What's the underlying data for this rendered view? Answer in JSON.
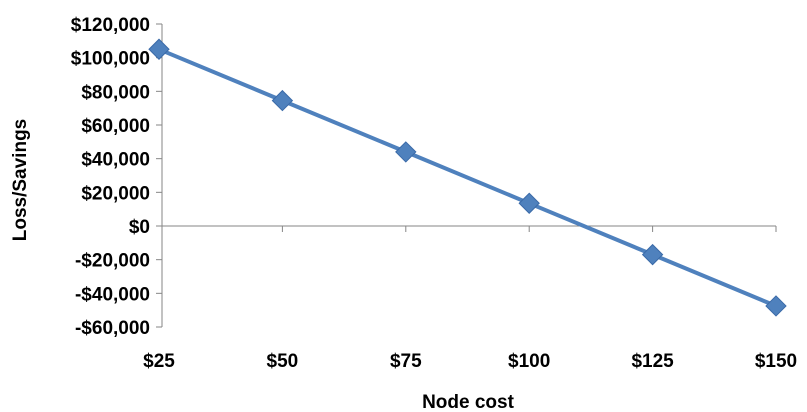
{
  "chart_data": {
    "type": "line",
    "title": "",
    "xlabel": "Node cost",
    "ylabel": "Loss/Savings",
    "categories": [
      "$25",
      "$50",
      "$75",
      "$100",
      "$125",
      "$150"
    ],
    "x": [
      25,
      50,
      75,
      100,
      125,
      150
    ],
    "series": [
      {
        "values": [
          105000,
          74500,
          44000,
          13500,
          -17000,
          -47500
        ],
        "color": "#4F81BD",
        "marker": "diamond"
      }
    ],
    "ylim": [
      -60000,
      120000
    ],
    "yticks": [
      120000,
      100000,
      80000,
      60000,
      40000,
      20000,
      0,
      -20000,
      -40000,
      -60000
    ],
    "ytick_labels": [
      "$120,000",
      "$100,000",
      "$80,000",
      "$60,000",
      "$40,000",
      "$20,000",
      "$0",
      "-$20,000",
      "-$40,000",
      "-$60,000"
    ],
    "grid": false,
    "legend": "none"
  }
}
